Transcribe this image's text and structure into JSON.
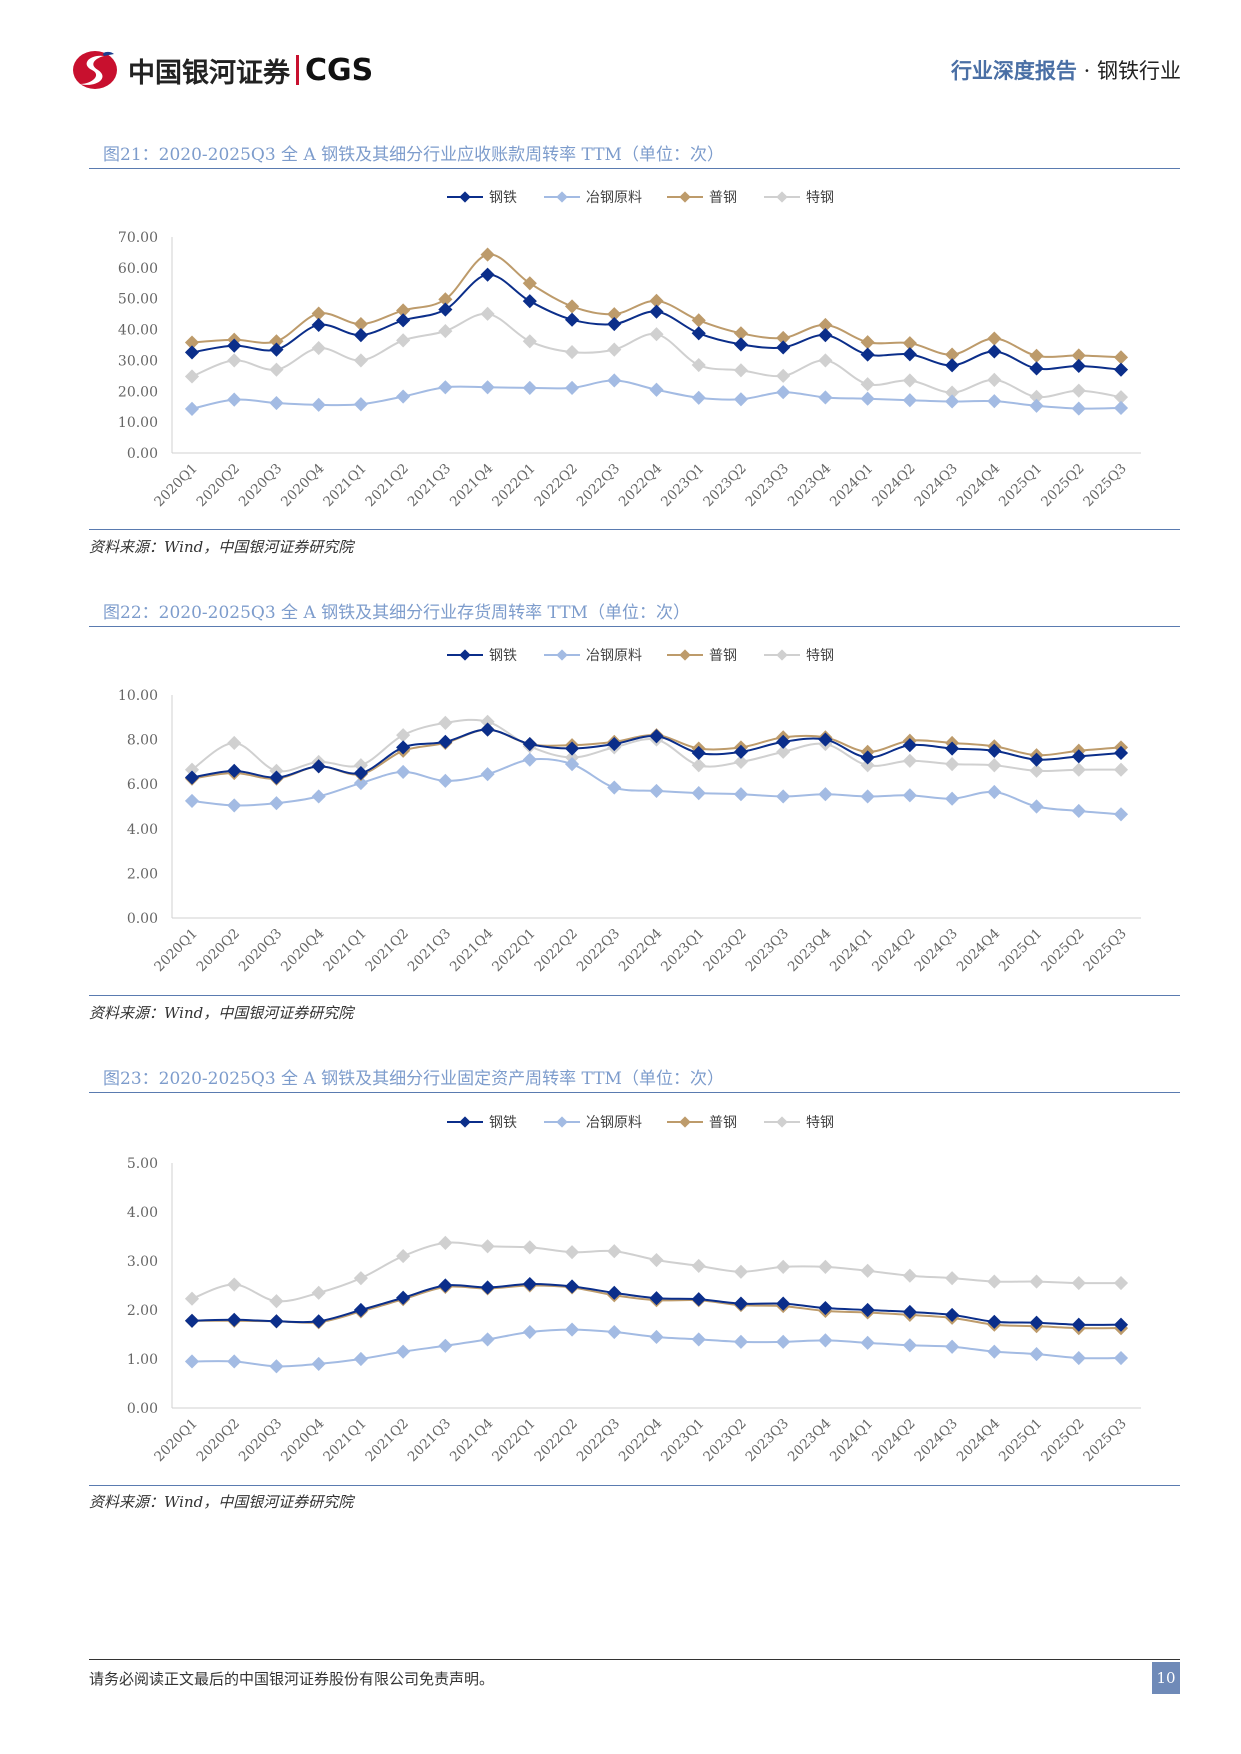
{
  "header": {
    "logo_text": "中国银河证券",
    "logo_abbr": "CGS",
    "report_type": "行业深度报告",
    "dot": "·",
    "industry": "钢铁行业"
  },
  "colors": {
    "钢铁": "#0b2e8a",
    "冶钢原料": "#a3bbe3",
    "普钢": "#bd9b6b",
    "特钢": "#d0d0d0"
  },
  "source": "资料来源：Wind，中国银河证券研究院",
  "footer": {
    "disclaimer": "请务必阅读正文最后的中国银河证券股份有限公司免责声明。",
    "page": "10"
  },
  "chart_data": [
    {
      "type": "line",
      "title": "图21：2020-2025Q3 全 A 钢铁及其细分行业应收账款周转率 TTM（单位：次）",
      "categories": [
        "2020Q1",
        "2020Q2",
        "2020Q3",
        "2020Q4",
        "2021Q1",
        "2021Q2",
        "2021Q3",
        "2021Q4",
        "2022Q1",
        "2022Q2",
        "2022Q3",
        "2022Q4",
        "2023Q1",
        "2023Q2",
        "2023Q3",
        "2023Q4",
        "2024Q1",
        "2024Q2",
        "2024Q3",
        "2024Q4",
        "2025Q1",
        "2025Q2",
        "2025Q3"
      ],
      "ylim": [
        0,
        70
      ],
      "yticks": [
        "0.00",
        "10.00",
        "20.00",
        "30.00",
        "40.00",
        "50.00",
        "60.00",
        "70.00"
      ],
      "legend": "top",
      "grid": false,
      "series": [
        {
          "name": "钢铁",
          "values": [
            32.6,
            34.8,
            33.5,
            41.5,
            38.2,
            43,
            46.5,
            57.8,
            49.2,
            43.2,
            41.8,
            45.8,
            38.8,
            35.2,
            34.2,
            38.2,
            31.9,
            32,
            28.4,
            32.9,
            27.4,
            28.2,
            27
          ]
        },
        {
          "name": "冶钢原料",
          "values": [
            14.3,
            17.3,
            16.2,
            15.6,
            15.8,
            18.3,
            21.3,
            21.3,
            21.1,
            21.1,
            23.5,
            20.5,
            17.9,
            17.4,
            19.7,
            18,
            17.6,
            17.1,
            16.7,
            16.8,
            15.3,
            14.4,
            14.6
          ]
        },
        {
          "name": "普钢",
          "values": [
            35.8,
            36.7,
            36.2,
            45.2,
            41.8,
            46.2,
            49.8,
            64.3,
            55,
            47.5,
            45,
            49.3,
            43,
            38.8,
            37.3,
            41.5,
            35.9,
            35.6,
            31.9,
            37.1,
            31.5,
            31.6,
            31
          ]
        },
        {
          "name": "特钢",
          "values": [
            24.8,
            30,
            27,
            34,
            30,
            36.5,
            39.5,
            45.1,
            36.2,
            32.7,
            33.5,
            38.5,
            28.5,
            26.8,
            25,
            30,
            22.3,
            23.5,
            19.6,
            23.7,
            18.2,
            20.2,
            18.1
          ]
        }
      ]
    },
    {
      "type": "line",
      "title": "图22：2020-2025Q3 全 A 钢铁及其细分行业存货周转率 TTM（单位：次）",
      "categories": [
        "2020Q1",
        "2020Q2",
        "2020Q3",
        "2020Q4",
        "2021Q1",
        "2021Q2",
        "2021Q3",
        "2021Q4",
        "2022Q1",
        "2022Q2",
        "2022Q3",
        "2022Q4",
        "2023Q1",
        "2023Q2",
        "2023Q3",
        "2023Q4",
        "2024Q1",
        "2024Q2",
        "2024Q3",
        "2024Q4",
        "2025Q1",
        "2025Q2",
        "2025Q3"
      ],
      "ylim": [
        0,
        10
      ],
      "yticks": [
        "0.00",
        "2.00",
        "4.00",
        "6.00",
        "8.00",
        "10.00"
      ],
      "legend": "top",
      "grid": false,
      "series": [
        {
          "name": "钢铁",
          "values": [
            6.3,
            6.6,
            6.3,
            6.8,
            6.5,
            7.65,
            7.9,
            8.45,
            7.8,
            7.6,
            7.8,
            8.15,
            7.4,
            7.45,
            7.9,
            8.0,
            7.2,
            7.75,
            7.6,
            7.5,
            7.1,
            7.25,
            7.4
          ]
        },
        {
          "name": "冶钢原料",
          "values": [
            5.25,
            5.05,
            5.15,
            5.45,
            6.05,
            6.55,
            6.15,
            6.45,
            7.1,
            6.9,
            5.85,
            5.7,
            5.6,
            5.55,
            5.45,
            5.55,
            5.45,
            5.5,
            5.35,
            5.65,
            5.0,
            4.8,
            4.65
          ]
        },
        {
          "name": "普钢",
          "values": [
            6.25,
            6.5,
            6.25,
            6.8,
            6.45,
            7.5,
            7.85,
            8.45,
            7.8,
            7.75,
            7.9,
            8.2,
            7.6,
            7.65,
            8.1,
            8.1,
            7.45,
            7.95,
            7.85,
            7.7,
            7.3,
            7.5,
            7.65
          ]
        },
        {
          "name": "特钢",
          "values": [
            6.65,
            7.85,
            6.6,
            7.0,
            6.85,
            8.2,
            8.75,
            8.8,
            7.7,
            7.2,
            7.65,
            8.0,
            6.85,
            7.0,
            7.45,
            7.8,
            6.85,
            7.05,
            6.9,
            6.85,
            6.6,
            6.65,
            6.65
          ]
        }
      ]
    },
    {
      "type": "line",
      "title": "图23：2020-2025Q3 全 A 钢铁及其细分行业固定资产周转率 TTM（单位：次）",
      "categories": [
        "2020Q1",
        "2020Q2",
        "2020Q3",
        "2020Q4",
        "2021Q1",
        "2021Q2",
        "2021Q3",
        "2021Q4",
        "2022Q1",
        "2022Q2",
        "2022Q3",
        "2022Q4",
        "2023Q1",
        "2023Q2",
        "2023Q3",
        "2023Q4",
        "2024Q1",
        "2024Q2",
        "2024Q3",
        "2024Q4",
        "2025Q1",
        "2025Q2",
        "2025Q3"
      ],
      "ylim": [
        0,
        5
      ],
      "yticks": [
        "0.00",
        "1.00",
        "2.00",
        "3.00",
        "4.00",
        "5.00"
      ],
      "legend": "top",
      "grid": false,
      "series": [
        {
          "name": "钢铁",
          "values": [
            1.78,
            1.8,
            1.77,
            1.77,
            2.0,
            2.25,
            2.5,
            2.46,
            2.53,
            2.48,
            2.35,
            2.24,
            2.22,
            2.13,
            2.13,
            2.04,
            2.0,
            1.96,
            1.9,
            1.76,
            1.74,
            1.7,
            1.7
          ]
        },
        {
          "name": "冶钢原料",
          "values": [
            0.95,
            0.95,
            0.85,
            0.9,
            1.0,
            1.15,
            1.27,
            1.4,
            1.55,
            1.6,
            1.55,
            1.45,
            1.4,
            1.35,
            1.35,
            1.38,
            1.33,
            1.28,
            1.25,
            1.15,
            1.1,
            1.02,
            1.02
          ]
        },
        {
          "name": "普钢",
          "values": [
            1.78,
            1.78,
            1.77,
            1.75,
            1.97,
            2.22,
            2.47,
            2.44,
            2.5,
            2.46,
            2.3,
            2.2,
            2.2,
            2.1,
            2.08,
            1.98,
            1.95,
            1.9,
            1.84,
            1.7,
            1.67,
            1.63,
            1.63
          ]
        },
        {
          "name": "特钢",
          "values": [
            2.23,
            2.52,
            2.18,
            2.35,
            2.65,
            3.1,
            3.37,
            3.3,
            3.28,
            3.18,
            3.2,
            3.02,
            2.9,
            2.78,
            2.88,
            2.88,
            2.8,
            2.7,
            2.65,
            2.58,
            2.58,
            2.55,
            2.55
          ]
        }
      ]
    }
  ]
}
